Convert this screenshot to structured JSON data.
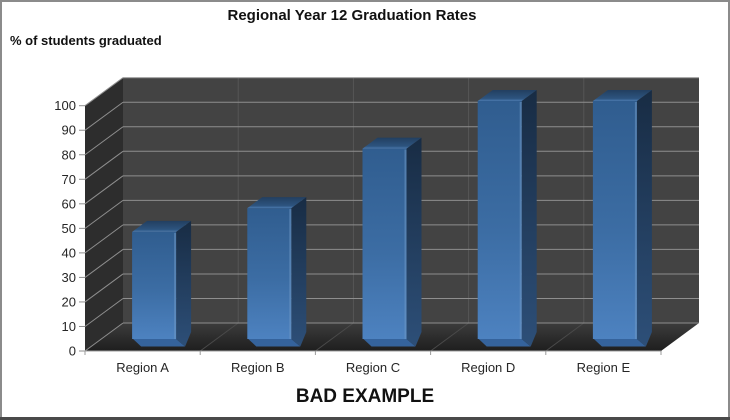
{
  "chart_data": {
    "type": "bar",
    "style": "3d-column-dark-walls",
    "title": "Regional Year 12 Graduation Rates",
    "ylabel": "% of students graduated",
    "footer": "BAD EXAMPLE",
    "xlabel": "",
    "categories": [
      "Region A",
      "Region B",
      "Region C",
      "Region D",
      "Region E"
    ],
    "values": [
      45,
      55,
      80,
      100,
      100
    ],
    "ylim": [
      0,
      100
    ],
    "yticks": [
      0,
      10,
      20,
      30,
      40,
      50,
      60,
      70,
      80,
      90,
      100
    ],
    "grid": true,
    "legend": "none",
    "colors": {
      "bar_front_top": "#305d8f",
      "bar_front_mid": "#3c6da4",
      "bar_front_bottom": "#4d82c0",
      "bar_edge_highlight": "#6e97c4",
      "bar_side_top": "#182c44",
      "bar_side_bottom": "#2d4f78",
      "bar_top_back": "#223f60",
      "bar_top_mid": "#2d547f",
      "bar_top_front": "#4a79ae",
      "bar_plinth": "#35639c",
      "wall_back": "#434343",
      "wall_left": "#2d2d2d",
      "floor_back": "#3c3c3c",
      "floor_front": "#1e1e1e",
      "gridline": "#8e8e8e",
      "gridline_vertical": "#565656",
      "axis_line": "#9b9b9b",
      "text": "#262626",
      "background": "#ffffff",
      "frame_border": "#8b8b8b",
      "frame_border_bottom": "#4a4a4a"
    }
  }
}
